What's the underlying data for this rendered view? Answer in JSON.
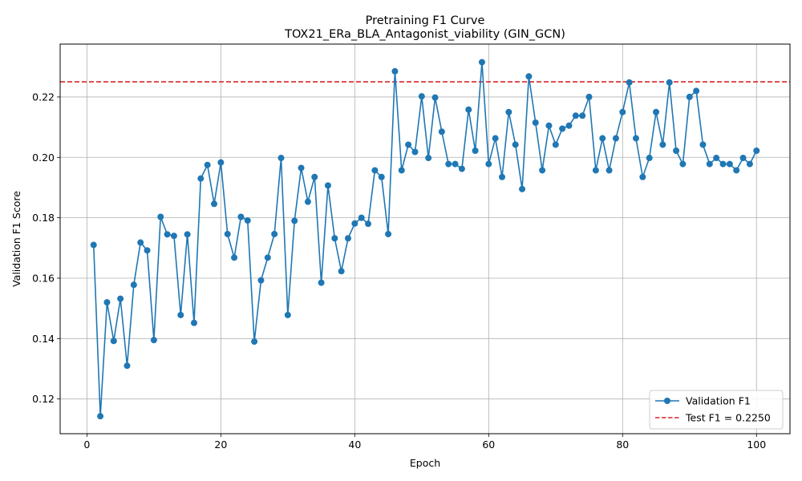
{
  "chart_data": {
    "type": "line",
    "title": "Pretraining F1 Curve",
    "subtitle": "TOX21_ERa_BLA_Antagonist_viability (GIN_GCN)",
    "xlabel": "Epoch",
    "ylabel": "Validation F1 Score",
    "xlim": [
      -4,
      105
    ],
    "ylim": [
      0.1085,
      0.2375
    ],
    "xticks": [
      0,
      20,
      40,
      60,
      80,
      100
    ],
    "yticks": [
      0.12,
      0.14,
      0.16,
      0.18,
      0.2,
      0.22
    ],
    "ytick_labels": [
      "0.12",
      "0.14",
      "0.16",
      "0.18",
      "0.20",
      "0.22"
    ],
    "grid": true,
    "legend_position": "bottom-right",
    "series": [
      {
        "name": "Validation F1",
        "color": "#1f77b4",
        "marker": "circle",
        "x": [
          1,
          2,
          3,
          4,
          5,
          6,
          7,
          8,
          9,
          10,
          11,
          12,
          13,
          14,
          15,
          16,
          17,
          18,
          19,
          20,
          21,
          22,
          23,
          24,
          25,
          26,
          27,
          28,
          29,
          30,
          31,
          32,
          33,
          34,
          35,
          36,
          37,
          38,
          39,
          40,
          41,
          42,
          43,
          44,
          45,
          46,
          47,
          48,
          49,
          50,
          51,
          52,
          53,
          54,
          55,
          56,
          57,
          58,
          59,
          60,
          61,
          62,
          63,
          64,
          65,
          66,
          67,
          68,
          69,
          70,
          71,
          72,
          73,
          74,
          75,
          76,
          77,
          78,
          79,
          80,
          81,
          82,
          83,
          84,
          85,
          86,
          87,
          88,
          89,
          90,
          91,
          92,
          93,
          94,
          95,
          96,
          97,
          98,
          99,
          100
        ],
        "values": [
          0.171,
          0.1143,
          0.152,
          0.1392,
          0.1532,
          0.131,
          0.1578,
          0.1718,
          0.1692,
          0.1395,
          0.1803,
          0.1745,
          0.174,
          0.1478,
          0.1745,
          0.1452,
          0.193,
          0.1975,
          0.1846,
          0.1983,
          0.1746,
          0.1668,
          0.1803,
          0.1791,
          0.139,
          0.1593,
          0.1668,
          0.1746,
          0.1998,
          0.1478,
          0.179,
          0.1965,
          0.1853,
          0.1935,
          0.1585,
          0.1907,
          0.1732,
          0.1623,
          0.1732,
          0.1781,
          0.18,
          0.178,
          0.1957,
          0.1935,
          0.1746,
          0.2285,
          0.1957,
          0.2042,
          0.2018,
          0.2202,
          0.1998,
          0.2198,
          0.2085,
          0.1978,
          0.1978,
          0.1962,
          0.2158,
          0.2022,
          0.2315,
          0.1978,
          0.2063,
          0.1935,
          0.215,
          0.2042,
          0.1895,
          0.2268,
          0.2115,
          0.1957,
          0.2105,
          0.2042,
          0.2095,
          0.2105,
          0.2138,
          0.2138,
          0.22,
          0.1957,
          0.2063,
          0.1957,
          0.2063,
          0.215,
          0.2248,
          0.2063,
          0.1935,
          0.1998,
          0.215,
          0.2042,
          0.2248,
          0.2022,
          0.1978,
          0.22,
          0.222,
          0.2042,
          0.1978,
          0.1998,
          0.1978,
          0.1978,
          0.1957,
          0.1998,
          0.1978,
          0.2022
        ]
      }
    ],
    "reference_line": {
      "label": "Test F1 = 0.2250",
      "value": 0.225,
      "color": "#d62728",
      "style": "dashed"
    }
  }
}
